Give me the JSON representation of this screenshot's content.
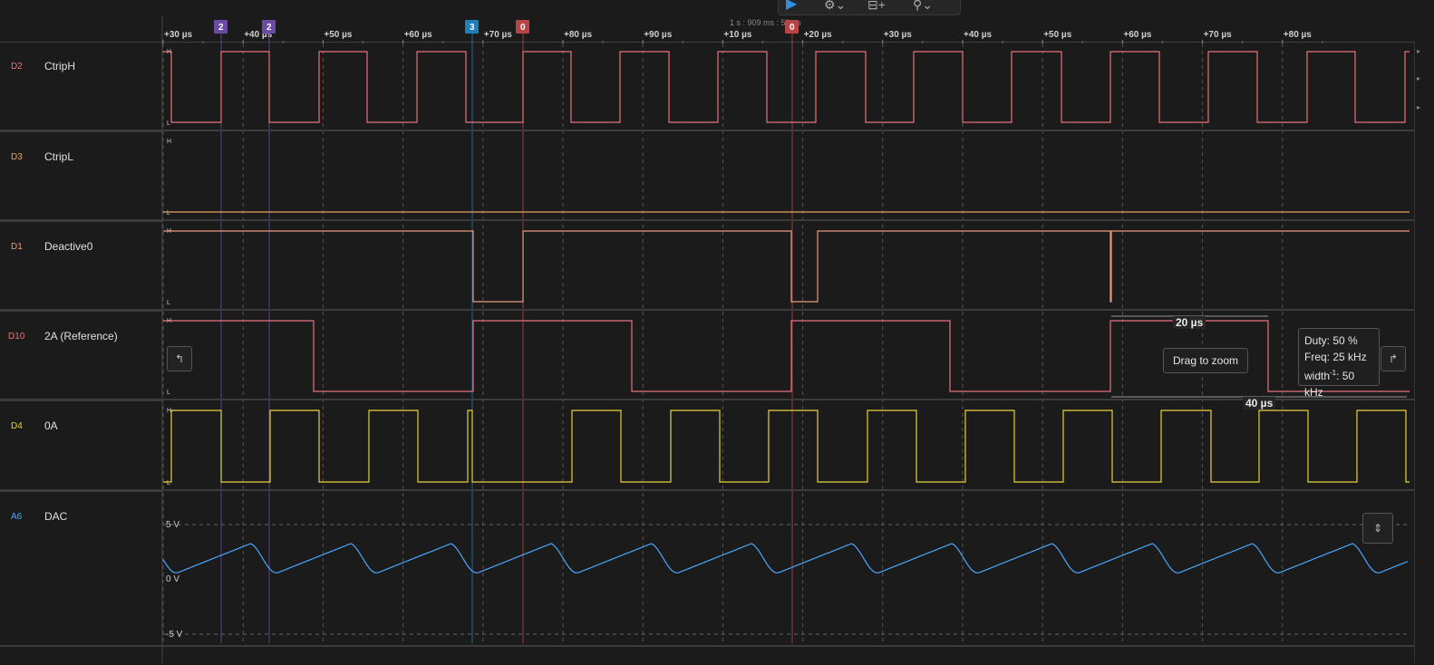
{
  "toolbar": {
    "play_icon": "play-icon",
    "icons": [
      "trigger-settings-icon",
      "measure-add-icon",
      "probe-icon"
    ]
  },
  "ruler": {
    "center_time": "1 s : 909 ms : 50 µs",
    "ticks": [
      "+30 µs",
      "+40 µs",
      "+50 µs",
      "+60 µs",
      "+70 µs",
      "+80 µs",
      "+90 µs",
      "+10 µs",
      "+20 µs",
      "+30 µs",
      "+40 µs",
      "+50 µs",
      "+60 µs",
      "+70 µs",
      "+80 µs"
    ],
    "markers": [
      {
        "label": "2",
        "color": "#6a4aa3"
      },
      {
        "label": "2",
        "color": "#6a4aa3"
      },
      {
        "label": "3",
        "color": "#1f7fb8"
      },
      {
        "label": "0",
        "color": "#b84545"
      },
      {
        "label": "0",
        "color": "#b84545"
      }
    ]
  },
  "channels": [
    {
      "id": "D2",
      "name": "CtripH",
      "color": "#e8727c"
    },
    {
      "id": "D3",
      "name": "CtripL",
      "color": "#e8a45c"
    },
    {
      "id": "D1",
      "name": "Deactive0",
      "color": "#e89a7c"
    },
    {
      "id": "D10",
      "name": "2A (Reference)",
      "color": "#e8727c"
    },
    {
      "id": "D4",
      "name": "0A",
      "color": "#e6d23c"
    },
    {
      "id": "A6",
      "name": "DAC",
      "color": "#4aa8ff"
    }
  ],
  "levels": {
    "high": "H",
    "low": "L"
  },
  "analog_axis": {
    "top": "5 V",
    "mid": "0 V",
    "bottom": "-5 V"
  },
  "measurements": {
    "width_label": "20 µs",
    "period_label": "40 µs",
    "drag_hint": "Drag to zoom",
    "duty": "Duty: 50 %",
    "freq": "Freq: 25 kHz",
    "width_inv_prefix": "width",
    "width_inv_exp": "-1",
    "width_inv_value": ": 50 kHz"
  },
  "colors": {
    "background": "#1b1b1b",
    "grid": "#555555",
    "accent": "#2f8fe0"
  }
}
